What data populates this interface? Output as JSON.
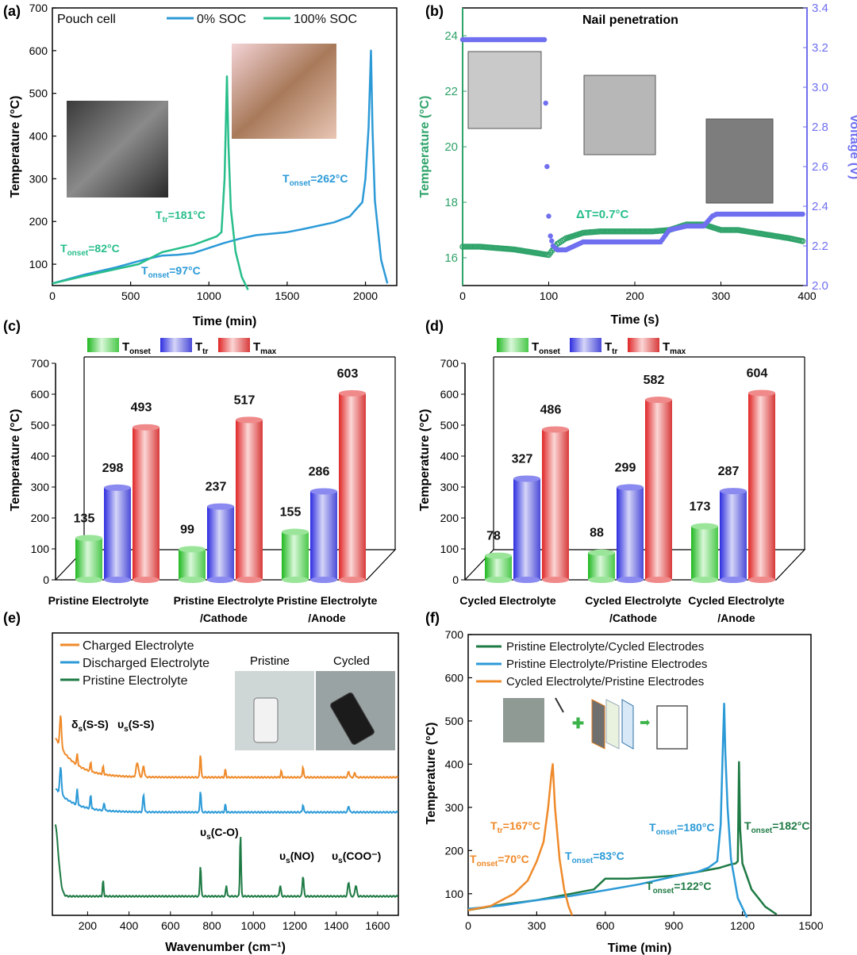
{
  "colors": {
    "blue": "#2c9ad7",
    "green": "#28be8a",
    "dkgreen": "#1e7a44",
    "orange": "#ef8a2a",
    "voltage": "#6f6ff0",
    "pkgreen": "#2fa36a"
  },
  "chart_data": [
    {
      "id": "a",
      "panel_label": "(a)",
      "type": "line",
      "title": "Pouch cell",
      "xlabel": "Time (min)",
      "ylabel": "Temperature (°C)",
      "xlim": [
        0,
        2200
      ],
      "ylim": [
        50,
        700
      ],
      "xticks": [
        "0",
        "500",
        "1000",
        "1500",
        "2000"
      ],
      "yticks": [
        "100",
        "200",
        "300",
        "400",
        "500",
        "600",
        "700"
      ],
      "series": [
        {
          "name": "0% SOC",
          "color": "#2c9ad7",
          "x": [
            0,
            200,
            400,
            600,
            700,
            800,
            900,
            1000,
            1100,
            1200,
            1300,
            1500,
            1600,
            1800,
            1900,
            1980,
            2000,
            2020,
            2035,
            2045,
            2060,
            2100,
            2140
          ],
          "y": [
            55,
            75,
            92,
            112,
            120,
            122,
            126,
            138,
            150,
            160,
            168,
            175,
            182,
            198,
            212,
            245,
            300,
            420,
            600,
            420,
            250,
            110,
            55
          ]
        },
        {
          "name": "100% SOC",
          "color": "#28be8a",
          "x": [
            0,
            200,
            400,
            550,
            700,
            900,
            1050,
            1080,
            1100,
            1115,
            1125,
            1140,
            1170,
            1210,
            1250
          ],
          "y": [
            55,
            72,
            88,
            100,
            128,
            145,
            165,
            175,
            300,
            540,
            380,
            230,
            130,
            70,
            40
          ]
        }
      ],
      "annotations": [
        {
          "text": "T",
          "sub": "onset",
          "rest": "=82°C",
          "color": "#28be8a"
        },
        {
          "text": "T",
          "sub": "tr",
          "rest": "=181°C",
          "color": "#28be8a"
        },
        {
          "text": "T",
          "sub": "onset",
          "rest": "=262°C",
          "color": "#2c9ad7"
        },
        {
          "text": "T",
          "sub": "onset",
          "rest": "=97°C",
          "color": "#2c9ad7"
        }
      ]
    },
    {
      "id": "b",
      "panel_label": "(b)",
      "type": "scatter",
      "title": "Nail penetration",
      "xlabel": "Time (s)",
      "ylabel": "Temperature (°C)",
      "y2label": "Voltage (V)",
      "xlim": [
        0,
        400
      ],
      "ylim": [
        15,
        25
      ],
      "y2lim": [
        2.0,
        3.4
      ],
      "xticks": [
        "0",
        "100",
        "200",
        "300",
        "400"
      ],
      "yticks": [
        "16",
        "18",
        "20",
        "22",
        "24"
      ],
      "y2ticks": [
        "2.0",
        "2.2",
        "2.4",
        "2.6",
        "2.8",
        "3.0",
        "3.2",
        "3.4"
      ],
      "series": [
        {
          "name": "Temperature",
          "color": "#2fa36a",
          "x": [
            0,
            20,
            40,
            60,
            70,
            80,
            90,
            100,
            110,
            120,
            140,
            160,
            180,
            200,
            220,
            240,
            250,
            260,
            280,
            300,
            320,
            340,
            360,
            380,
            395
          ],
          "y": [
            16.4,
            16.4,
            16.35,
            16.3,
            16.25,
            16.2,
            16.15,
            16.1,
            16.5,
            16.7,
            16.9,
            16.95,
            16.95,
            16.95,
            16.95,
            17.0,
            17.1,
            17.2,
            17.2,
            17.0,
            17.0,
            16.9,
            16.8,
            16.7,
            16.6
          ]
        },
        {
          "name": "Voltage",
          "color": "#6f6ff0",
          "x": [
            0,
            20,
            40,
            60,
            80,
            95,
            98,
            100,
            102,
            105,
            110,
            120,
            140,
            160,
            200,
            230,
            240,
            260,
            280,
            290,
            295,
            320,
            360,
            395
          ],
          "y": [
            3.24,
            3.24,
            3.24,
            3.24,
            3.24,
            3.24,
            2.6,
            2.35,
            2.25,
            2.2,
            2.18,
            2.18,
            2.22,
            2.22,
            2.22,
            2.22,
            2.28,
            2.3,
            2.3,
            2.35,
            2.36,
            2.36,
            2.36,
            2.36
          ]
        }
      ],
      "annotations": [
        {
          "text": "ΔT=0.7°C",
          "color": "#28be8a"
        }
      ]
    },
    {
      "id": "c",
      "panel_label": "(c)",
      "type": "bar",
      "ylabel": "Temperature (°C)",
      "ylim": [
        0,
        700
      ],
      "yticks": [
        "0",
        "100",
        "200",
        "300",
        "400",
        "500",
        "600",
        "700"
      ],
      "legend": [
        {
          "main": "T",
          "sub": "onset"
        },
        {
          "main": "T",
          "sub": "tr"
        },
        {
          "main": "T",
          "sub": "max"
        }
      ],
      "categories": [
        "Pristine Electrolyte",
        "Pristine Electrolyte\n/Cathode",
        "Pristine Electrolyte\n/Anode"
      ],
      "series": [
        {
          "name": "T_onset",
          "values": [
            135,
            99,
            155
          ]
        },
        {
          "name": "T_tr",
          "values": [
            298,
            237,
            286
          ]
        },
        {
          "name": "T_max",
          "values": [
            493,
            517,
            603
          ]
        }
      ]
    },
    {
      "id": "d",
      "panel_label": "(d)",
      "type": "bar",
      "ylabel": "Temperature (°C)",
      "ylim": [
        0,
        700
      ],
      "yticks": [
        "0",
        "100",
        "200",
        "300",
        "400",
        "500",
        "600",
        "700"
      ],
      "legend": [
        {
          "main": "T",
          "sub": "onset"
        },
        {
          "main": "T",
          "sub": "tr"
        },
        {
          "main": "T",
          "sub": "max"
        }
      ],
      "categories": [
        "Cycled Electrolyte",
        "Cycled Electrolyte\n/Cathode",
        "Cycled Electrolyte\n/Anode"
      ],
      "series": [
        {
          "name": "T_onset",
          "values": [
            78,
            88,
            173
          ]
        },
        {
          "name": "T_tr",
          "values": [
            327,
            299,
            287
          ]
        },
        {
          "name": "T_max",
          "values": [
            486,
            582,
            604
          ]
        }
      ]
    },
    {
      "id": "e",
      "panel_label": "(e)",
      "type": "line",
      "xlabel": "Wavenumber (cm⁻¹)",
      "xlim": [
        30,
        1700
      ],
      "xticks": [
        "200",
        "400",
        "600",
        "800",
        "1000",
        "1200",
        "1400",
        "1600"
      ],
      "series": [
        {
          "name": "Charged Electrolyte",
          "color": "#ef8a2a"
        },
        {
          "name": "Discharged Electrolyte",
          "color": "#2c9ad7"
        },
        {
          "name": "Pristine Electrolyte",
          "color": "#1e7a44"
        }
      ],
      "annotations": [
        {
          "text": "δ",
          "sub": "s",
          "rest": "(S-S)"
        },
        {
          "text": "υ",
          "sub": "s",
          "rest": "(S-S)"
        },
        {
          "text": "υ",
          "sub": "s",
          "rest": "(C-O)"
        },
        {
          "text": "υ",
          "sub": "s",
          "rest": "(NO)"
        },
        {
          "text": "υ",
          "sub": "s",
          "rest": "(COO⁻)"
        }
      ],
      "photo_labels": [
        "Pristine",
        "Cycled"
      ]
    },
    {
      "id": "f",
      "panel_label": "(f)",
      "type": "line",
      "xlabel": "Time (min)",
      "ylabel": "Temperature (°C)",
      "xlim": [
        0,
        1500
      ],
      "ylim": [
        50,
        700
      ],
      "xticks": [
        "0",
        "300",
        "600",
        "900",
        "1200",
        "1500"
      ],
      "yticks": [
        "100",
        "200",
        "300",
        "400",
        "500",
        "600",
        "700"
      ],
      "series": [
        {
          "name": "Pristine Electrolyte/Cycled Electrodes",
          "color": "#1e7a44",
          "x": [
            0,
            150,
            300,
            450,
            550,
            600,
            700,
            800,
            900,
            1000,
            1100,
            1150,
            1170,
            1180,
            1185,
            1190,
            1200,
            1240,
            1300,
            1350
          ],
          "y": [
            62,
            75,
            85,
            100,
            110,
            135,
            135,
            138,
            142,
            150,
            160,
            168,
            170,
            175,
            405,
            250,
            170,
            110,
            70,
            52
          ]
        },
        {
          "name": "Pristine Electrolyte/Pristine Electrodes",
          "color": "#2c9ad7",
          "x": [
            0,
            150,
            300,
            450,
            600,
            750,
            900,
            1000,
            1050,
            1090,
            1105,
            1115,
            1120,
            1125,
            1135,
            1150,
            1180,
            1220
          ],
          "y": [
            65,
            73,
            85,
            95,
            108,
            122,
            140,
            150,
            160,
            175,
            260,
            450,
            540,
            430,
            300,
            180,
            90,
            45
          ]
        },
        {
          "name": "Cycled Electrolyte/Pristine Electrodes",
          "color": "#ef8a2a",
          "x": [
            0,
            100,
            200,
            260,
            300,
            330,
            350,
            365,
            370,
            380,
            400,
            420,
            440,
            455
          ],
          "y": [
            62,
            72,
            100,
            130,
            175,
            220,
            300,
            380,
            400,
            300,
            180,
            110,
            70,
            50
          ]
        }
      ],
      "annotations": [
        {
          "text": "T",
          "sub": "tr",
          "rest": "=167°C",
          "color": "#ef8a2a"
        },
        {
          "text": "T",
          "sub": "onset",
          "rest": "=70°C",
          "color": "#ef8a2a"
        },
        {
          "text": "T",
          "sub": "onset",
          "rest": "=83°C",
          "color": "#2c9ad7"
        },
        {
          "text": "T",
          "sub": "onset",
          "rest": "=180°C",
          "color": "#2c9ad7"
        },
        {
          "text": "T",
          "sub": "onset",
          "rest": "=182°C",
          "color": "#1e7a44"
        },
        {
          "text": "T",
          "sub": "onset",
          "rest": "=122°C",
          "color": "#1e7a44"
        }
      ]
    }
  ]
}
